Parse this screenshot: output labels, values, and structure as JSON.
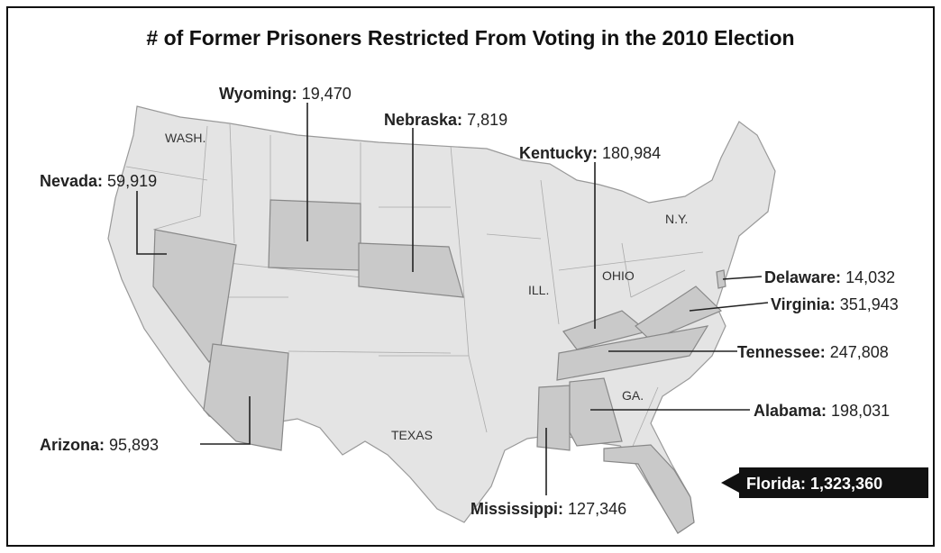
{
  "title": "# of Former Prisoners Restricted From Voting in the 2010 Election",
  "state_labels": [
    "WASH.",
    "N.Y.",
    "OHIO",
    "ILL.",
    "TEXAS",
    "GA."
  ],
  "callouts": [
    {
      "name": "Wyoming:",
      "value": "19,470"
    },
    {
      "name": "Nebraska:",
      "value": "7,819"
    },
    {
      "name": "Kentucky:",
      "value": "180,984"
    },
    {
      "name": "Nevada:",
      "value": "59,919"
    },
    {
      "name": "Delaware:",
      "value": "14,032"
    },
    {
      "name": "Virginia:",
      "value": "351,943"
    },
    {
      "name": "Tennessee:",
      "value": "247,808"
    },
    {
      "name": "Alabama:",
      "value": "198,031"
    },
    {
      "name": "Arizona:",
      "value": "95,893"
    },
    {
      "name": "Mississippi:",
      "value": "127,346"
    },
    {
      "name": "Florida:",
      "value": "1,323,360"
    }
  ]
}
